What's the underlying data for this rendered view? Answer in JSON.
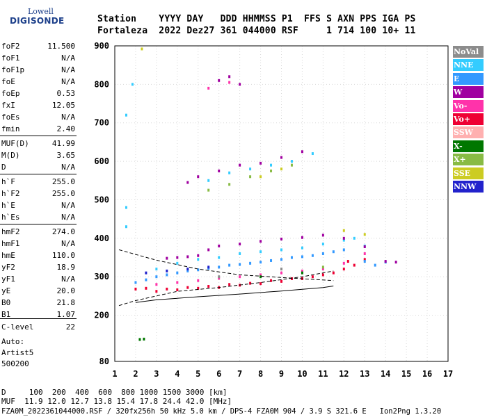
{
  "logo": {
    "line1": "Lowell",
    "line2": "DIGISONDE"
  },
  "header": {
    "line1": "Station    YYYY DAY   DDD HHMMSS P1  FFS S AXN PPS IGA PS",
    "line2": "Fortaleza  2022 Dez27 361 044000 RSF     1 714 100 10+ 11"
  },
  "params": [
    {
      "name": "foF2",
      "value": "11.500"
    },
    {
      "name": "foF1",
      "value": "N/A"
    },
    {
      "name": "foF1p",
      "value": "N/A"
    },
    {
      "name": "foE",
      "value": "N/A"
    },
    {
      "name": "foEp",
      "value": "0.53"
    },
    {
      "name": "fxI",
      "value": "12.05"
    },
    {
      "name": "foEs",
      "value": "N/A"
    },
    {
      "name": "fmin",
      "value": "2.40"
    },
    {
      "name": "MUF(D)",
      "value": "41.99"
    },
    {
      "name": "M(D)",
      "value": "3.65"
    },
    {
      "name": "D",
      "value": "N/A"
    },
    {
      "name": "h`F",
      "value": "255.0"
    },
    {
      "name": "h`F2",
      "value": "255.0"
    },
    {
      "name": "h`E",
      "value": "N/A"
    },
    {
      "name": "h`Es",
      "value": "N/A"
    },
    {
      "name": "hmF2",
      "value": "274.0"
    },
    {
      "name": "hmF1",
      "value": "N/A"
    },
    {
      "name": "hmE",
      "value": "110.0"
    },
    {
      "name": "yF2",
      "value": "18.9"
    },
    {
      "name": "yF1",
      "value": "N/A"
    },
    {
      "name": "yE",
      "value": "20.0"
    },
    {
      "name": "B0",
      "value": "21.8"
    },
    {
      "name": "B1",
      "value": "1.07"
    },
    {
      "name": "C-level",
      "value": "22"
    }
  ],
  "auto": {
    "label": "Auto:",
    "program": "Artist5",
    "version": "500200"
  },
  "legend": [
    {
      "label": "NoVal",
      "color": "#8c8c8c"
    },
    {
      "label": "NNE",
      "color": "#33ccff"
    },
    {
      "label": "E",
      "color": "#3399ff"
    },
    {
      "label": "W",
      "color": "#a000a0"
    },
    {
      "label": "Vo-",
      "color": "#ff33aa"
    },
    {
      "label": "Vo+",
      "color": "#ee0033"
    },
    {
      "label": "SSW",
      "color": "#ffb0b0"
    },
    {
      "label": "X-",
      "color": "#007700"
    },
    {
      "label": "X+",
      "color": "#88bb44"
    },
    {
      "label": "SSE",
      "color": "#cccc22"
    },
    {
      "label": "NNW",
      "color": "#2222cc"
    }
  ],
  "footer": {
    "line1": "D     100  200  400  600  800 1000 1500 3000 [km]",
    "line2": "MUF  11.9 12.0 12.7 13.8 15.4 17.8 24.4 42.0 [MHz]",
    "line3": "FZA0M_2022361044000.RSF / 320fx256h 50 kHz 5.0 km / DPS-4 FZA0M 904 / 3.9 S 321.6 E   Ion2Png 1.3.20"
  },
  "chart_data": {
    "type": "scatter",
    "xlim": [
      1,
      17
    ],
    "ylim": [
      80,
      900
    ],
    "x_ticks": [
      1,
      2,
      3,
      4,
      5,
      6,
      7,
      8,
      9,
      10,
      11,
      12,
      13,
      14,
      15,
      16,
      17
    ],
    "y_ticks": [
      80,
      200,
      300,
      400,
      500,
      600,
      700,
      800,
      900
    ],
    "grid": true,
    "series": [
      {
        "name": "Vo+",
        "color": "#ee0033",
        "values": [
          [
            2.0,
            268
          ],
          [
            2.5,
            270
          ],
          [
            3,
            262
          ],
          [
            3.5,
            268
          ],
          [
            4,
            266
          ],
          [
            4.5,
            272
          ],
          [
            5,
            270
          ],
          [
            5.5,
            275
          ],
          [
            6,
            272
          ],
          [
            6.5,
            280
          ],
          [
            7,
            278
          ],
          [
            7.5,
            283
          ],
          [
            8,
            282
          ],
          [
            8.5,
            290
          ],
          [
            9,
            288
          ],
          [
            9.5,
            295
          ],
          [
            10,
            295
          ],
          [
            10.5,
            300
          ],
          [
            11,
            305
          ],
          [
            11.5,
            310
          ],
          [
            12,
            320
          ],
          [
            12.2,
            340
          ],
          [
            12.5,
            330
          ],
          [
            13,
            345
          ]
        ]
      },
      {
        "name": "E",
        "color": "#3399ff",
        "values": [
          [
            2,
            285
          ],
          [
            2.5,
            292
          ],
          [
            3,
            300
          ],
          [
            3.5,
            305
          ],
          [
            4,
            310
          ],
          [
            4.5,
            315
          ],
          [
            5,
            318
          ],
          [
            5.5,
            322
          ],
          [
            6,
            325
          ],
          [
            6.5,
            330
          ],
          [
            7,
            332
          ],
          [
            7.5,
            335
          ],
          [
            8,
            338
          ],
          [
            8.5,
            342
          ],
          [
            9,
            345
          ],
          [
            9.5,
            350
          ],
          [
            10,
            352
          ],
          [
            10.5,
            355
          ],
          [
            11,
            360
          ],
          [
            11.5,
            365
          ],
          [
            12,
            370
          ],
          [
            13,
            340
          ],
          [
            13.5,
            330
          ],
          [
            14,
            338
          ]
        ]
      },
      {
        "name": "NNE",
        "color": "#33ccff",
        "values": [
          [
            1.55,
            720
          ],
          [
            1.55,
            480
          ],
          [
            1.55,
            430
          ],
          [
            1.85,
            800
          ],
          [
            3,
            320
          ],
          [
            4,
            335
          ],
          [
            5,
            345
          ],
          [
            6,
            350
          ],
          [
            7,
            360
          ],
          [
            8,
            365
          ],
          [
            9,
            370
          ],
          [
            10,
            375
          ],
          [
            11,
            385
          ],
          [
            12,
            395
          ],
          [
            12.5,
            400
          ],
          [
            13,
            380
          ],
          [
            5.5,
            550
          ],
          [
            6.5,
            570
          ],
          [
            7.5,
            580
          ],
          [
            8.5,
            590
          ],
          [
            9.5,
            600
          ],
          [
            10.5,
            620
          ]
        ]
      },
      {
        "name": "W",
        "color": "#a000a0",
        "values": [
          [
            3.5,
            348
          ],
          [
            4,
            350
          ],
          [
            4.5,
            352
          ],
          [
            5,
            355
          ],
          [
            5.5,
            370
          ],
          [
            6,
            380
          ],
          [
            7,
            385
          ],
          [
            8,
            392
          ],
          [
            9,
            398
          ],
          [
            10,
            402
          ],
          [
            11,
            408
          ],
          [
            12,
            400
          ],
          [
            13,
            378
          ],
          [
            14,
            340
          ],
          [
            14.5,
            338
          ],
          [
            6,
            810
          ],
          [
            6.5,
            820
          ],
          [
            7,
            800
          ],
          [
            4.5,
            545
          ],
          [
            5,
            560
          ],
          [
            6,
            575
          ],
          [
            7,
            590
          ],
          [
            8,
            595
          ],
          [
            9,
            610
          ],
          [
            10,
            625
          ]
        ]
      },
      {
        "name": "Vo-",
        "color": "#ff33aa",
        "values": [
          [
            3,
            280
          ],
          [
            4,
            285
          ],
          [
            5,
            290
          ],
          [
            6,
            296
          ],
          [
            7,
            300
          ],
          [
            8,
            305
          ],
          [
            9,
            310
          ],
          [
            10,
            315
          ],
          [
            11,
            320
          ],
          [
            12,
            335
          ],
          [
            13,
            360
          ],
          [
            5.5,
            790
          ],
          [
            6.5,
            805
          ]
        ]
      },
      {
        "name": "X-",
        "color": "#007700",
        "values": [
          [
            2.2,
            137
          ],
          [
            2.4,
            138
          ],
          [
            8,
            300
          ],
          [
            10,
            310
          ]
        ]
      },
      {
        "name": "X+",
        "color": "#88bb44",
        "values": [
          [
            5.5,
            525
          ],
          [
            6.5,
            540
          ],
          [
            7.5,
            560
          ],
          [
            8.5,
            575
          ],
          [
            9.5,
            590
          ],
          [
            11,
            325
          ]
        ]
      },
      {
        "name": "SSE",
        "color": "#cccc22",
        "values": [
          [
            2.3,
            892
          ],
          [
            12,
            420
          ],
          [
            13,
            410
          ],
          [
            8,
            560
          ],
          [
            9,
            580
          ]
        ]
      },
      {
        "name": "NNW",
        "color": "#2222cc",
        "values": [
          [
            2.5,
            310
          ],
          [
            3.5,
            315
          ],
          [
            4.5,
            320
          ],
          [
            5.5,
            325
          ]
        ]
      },
      {
        "name": "NoVal",
        "color": "#8c8c8c",
        "values": [
          [
            6,
            300
          ],
          [
            9,
            320
          ]
        ]
      }
    ],
    "profile_curves": [
      {
        "style": "dashed",
        "points": [
          [
            1.2,
            225
          ],
          [
            2,
            238
          ],
          [
            4,
            262
          ],
          [
            6,
            272
          ],
          [
            8,
            285
          ],
          [
            10,
            300
          ],
          [
            11.5,
            315
          ]
        ]
      },
      {
        "style": "dashed",
        "points": [
          [
            1.2,
            370
          ],
          [
            3,
            343
          ],
          [
            5,
            320
          ],
          [
            7,
            305
          ],
          [
            9,
            298
          ],
          [
            11.5,
            290
          ]
        ]
      },
      {
        "style": "solid",
        "points": [
          [
            2,
            233
          ],
          [
            3,
            240
          ],
          [
            5,
            248
          ],
          [
            7,
            255
          ],
          [
            9,
            263
          ],
          [
            11,
            272
          ],
          [
            11.5,
            276
          ]
        ]
      }
    ]
  }
}
